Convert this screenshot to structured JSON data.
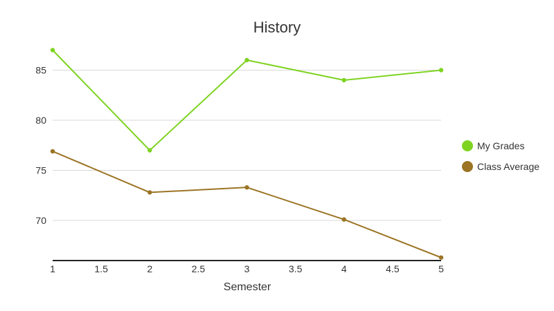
{
  "chart_data": {
    "type": "line",
    "title": "History",
    "xlabel": "Semester",
    "ylabel": "",
    "x": [
      1,
      2,
      3,
      4,
      5
    ],
    "xlim": [
      1,
      5
    ],
    "ylim": [
      66,
      88
    ],
    "x_ticks": [
      1,
      1.5,
      2,
      2.5,
      3,
      3.5,
      4,
      4.5,
      5
    ],
    "x_tick_labels": [
      "1",
      "1.5",
      "2",
      "2.5",
      "3",
      "3.5",
      "4",
      "4.5",
      "5"
    ],
    "y_ticks": [
      70,
      75,
      80,
      85
    ],
    "y_tick_labels": [
      "70",
      "75",
      "80",
      "85"
    ],
    "grid": true,
    "legend_position": "right",
    "series": [
      {
        "name": "My Grades",
        "color": "#7ed321",
        "values": [
          87,
          77,
          86,
          84,
          85
        ]
      },
      {
        "name": "Class Average",
        "color": "#9b7424",
        "values": [
          76.9,
          72.8,
          73.3,
          70.1,
          66.3
        ]
      }
    ]
  }
}
